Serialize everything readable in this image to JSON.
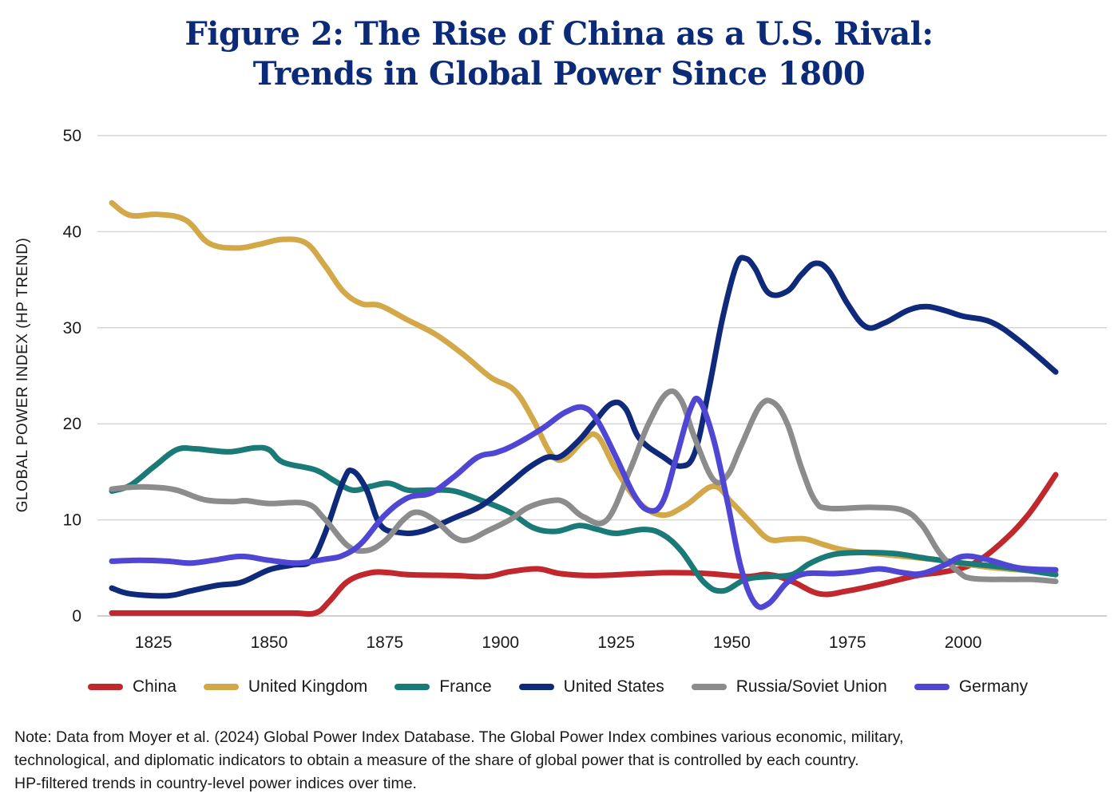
{
  "title": {
    "line1": "Figure 2: The Rise of China as a U.S. Rival:",
    "line2": "Trends in Global Power Since 1800"
  },
  "note": {
    "line1": "Note: Data from Moyer et al. (2024) Global Power Index Database. The Global Power Index combines various economic, military,",
    "line2": "technological, and diplomatic indicators to obtain a measure of the share of global power that is controlled by each country.",
    "line3": "HP-filtered trends in country-level power indices over time."
  },
  "chart_data": {
    "type": "line",
    "ylabel": "GLOBAL POWER INDEX (HP TREND)",
    "xlabel": "",
    "xlim": [
      1815,
      2022
    ],
    "ylim": [
      0,
      50
    ],
    "xticks": [
      1825,
      1850,
      1875,
      1900,
      1925,
      1950,
      1975,
      2000
    ],
    "yticks": [
      0,
      10,
      20,
      30,
      40,
      50
    ],
    "grid": "horizontal",
    "legend_position": "bottom",
    "series": [
      {
        "name": "China",
        "color": "#c0282d",
        "points": [
          [
            1816,
            0.3
          ],
          [
            1830,
            0.3
          ],
          [
            1845,
            0.3
          ],
          [
            1855,
            0.3
          ],
          [
            1860,
            0.3
          ],
          [
            1863,
            1.5
          ],
          [
            1867,
            3.6
          ],
          [
            1872,
            4.5
          ],
          [
            1876,
            4.5
          ],
          [
            1880,
            4.3
          ],
          [
            1890,
            4.2
          ],
          [
            1897,
            4.1
          ],
          [
            1902,
            4.6
          ],
          [
            1908,
            4.9
          ],
          [
            1913,
            4.4
          ],
          [
            1920,
            4.2
          ],
          [
            1930,
            4.4
          ],
          [
            1937,
            4.5
          ],
          [
            1945,
            4.4
          ],
          [
            1953,
            4.1
          ],
          [
            1958,
            4.3
          ],
          [
            1963,
            3.6
          ],
          [
            1969,
            2.3
          ],
          [
            1975,
            2.6
          ],
          [
            1982,
            3.3
          ],
          [
            1990,
            4.2
          ],
          [
            1996,
            4.6
          ],
          [
            2002,
            5.4
          ],
          [
            2008,
            7.5
          ],
          [
            2014,
            10.5
          ],
          [
            2020,
            14.7
          ]
        ]
      },
      {
        "name": "United Kingdom",
        "color": "#d3a849",
        "points": [
          [
            1816,
            43
          ],
          [
            1820,
            41.7
          ],
          [
            1826,
            41.8
          ],
          [
            1832,
            41.2
          ],
          [
            1837,
            38.8
          ],
          [
            1843,
            38.3
          ],
          [
            1848,
            38.7
          ],
          [
            1853,
            39.2
          ],
          [
            1858,
            38.8
          ],
          [
            1862,
            36.5
          ],
          [
            1866,
            33.8
          ],
          [
            1870,
            32.5
          ],
          [
            1874,
            32.3
          ],
          [
            1880,
            30.8
          ],
          [
            1886,
            29.3
          ],
          [
            1892,
            27.2
          ],
          [
            1898,
            24.8
          ],
          [
            1903,
            23.5
          ],
          [
            1907,
            20.5
          ],
          [
            1911,
            16.8
          ],
          [
            1914,
            16.4
          ],
          [
            1918,
            18.3
          ],
          [
            1921,
            18.7
          ],
          [
            1925,
            15.2
          ],
          [
            1930,
            11.8
          ],
          [
            1935,
            10.5
          ],
          [
            1940,
            11.5
          ],
          [
            1946,
            13.5
          ],
          [
            1950,
            11.8
          ],
          [
            1954,
            9.8
          ],
          [
            1958,
            8
          ],
          [
            1962,
            8
          ],
          [
            1966,
            8
          ],
          [
            1970,
            7.4
          ],
          [
            1975,
            6.8
          ],
          [
            1985,
            6.3
          ],
          [
            1995,
            5.8
          ],
          [
            2005,
            5.1
          ],
          [
            2015,
            4.7
          ],
          [
            2020,
            4.6
          ]
        ]
      },
      {
        "name": "France",
        "color": "#1a7a77",
        "points": [
          [
            1816,
            13
          ],
          [
            1820,
            13.6
          ],
          [
            1825,
            15.5
          ],
          [
            1830,
            17.3
          ],
          [
            1834,
            17.4
          ],
          [
            1838,
            17.2
          ],
          [
            1842,
            17.1
          ],
          [
            1847,
            17.5
          ],
          [
            1850,
            17.3
          ],
          [
            1853,
            16
          ],
          [
            1860,
            15.2
          ],
          [
            1864,
            14.1
          ],
          [
            1868,
            13.1
          ],
          [
            1872,
            13.5
          ],
          [
            1876,
            13.8
          ],
          [
            1880,
            13.1
          ],
          [
            1885,
            13.1
          ],
          [
            1890,
            13
          ],
          [
            1896,
            12
          ],
          [
            1902,
            10.8
          ],
          [
            1907,
            9.2
          ],
          [
            1912,
            8.8
          ],
          [
            1917,
            9.4
          ],
          [
            1921,
            9
          ],
          [
            1925,
            8.6
          ],
          [
            1931,
            9
          ],
          [
            1935,
            8.5
          ],
          [
            1939,
            6.8
          ],
          [
            1944,
            3.5
          ],
          [
            1948,
            2.6
          ],
          [
            1953,
            3.8
          ],
          [
            1958,
            4.1
          ],
          [
            1963,
            4.3
          ],
          [
            1967,
            5.5
          ],
          [
            1972,
            6.4
          ],
          [
            1978,
            6.6
          ],
          [
            1985,
            6.5
          ],
          [
            1992,
            6
          ],
          [
            2000,
            5.5
          ],
          [
            2010,
            5
          ],
          [
            2020,
            4.3
          ]
        ]
      },
      {
        "name": "United States",
        "color": "#0f2a7a",
        "points": [
          [
            1816,
            2.9
          ],
          [
            1820,
            2.3
          ],
          [
            1828,
            2.1
          ],
          [
            1833,
            2.6
          ],
          [
            1839,
            3.2
          ],
          [
            1844,
            3.5
          ],
          [
            1850,
            4.8
          ],
          [
            1855,
            5.3
          ],
          [
            1859,
            5.7
          ],
          [
            1862,
            8.5
          ],
          [
            1866,
            14
          ],
          [
            1868,
            15.1
          ],
          [
            1871,
            13.2
          ],
          [
            1874,
            9.5
          ],
          [
            1878,
            8.7
          ],
          [
            1883,
            8.8
          ],
          [
            1890,
            10.2
          ],
          [
            1896,
            11.5
          ],
          [
            1902,
            13.8
          ],
          [
            1906,
            15.4
          ],
          [
            1910,
            16.5
          ],
          [
            1913,
            16.6
          ],
          [
            1917,
            18.3
          ],
          [
            1920,
            20
          ],
          [
            1924,
            22.1
          ],
          [
            1927,
            21.6
          ],
          [
            1930,
            18.5
          ],
          [
            1935,
            16.6
          ],
          [
            1939,
            15.6
          ],
          [
            1942,
            17
          ],
          [
            1945,
            23.5
          ],
          [
            1948,
            31
          ],
          [
            1951,
            36.5
          ],
          [
            1953,
            37.2
          ],
          [
            1955,
            36.2
          ],
          [
            1958,
            33.6
          ],
          [
            1962,
            33.8
          ],
          [
            1965,
            35.5
          ],
          [
            1968,
            36.7
          ],
          [
            1971,
            35.9
          ],
          [
            1975,
            32.5
          ],
          [
            1979,
            30.1
          ],
          [
            1983,
            30.5
          ],
          [
            1988,
            31.8
          ],
          [
            1992,
            32.2
          ],
          [
            1996,
            31.8
          ],
          [
            2000,
            31.2
          ],
          [
            2006,
            30.6
          ],
          [
            2012,
            28.7
          ],
          [
            2020,
            25.4
          ]
        ]
      },
      {
        "name": "Russia/Soviet Union",
        "color": "#8c8c8c",
        "points": [
          [
            1816,
            13.2
          ],
          [
            1820,
            13.4
          ],
          [
            1825,
            13.4
          ],
          [
            1830,
            13.1
          ],
          [
            1836,
            12.1
          ],
          [
            1842,
            11.9
          ],
          [
            1845,
            12
          ],
          [
            1850,
            11.7
          ],
          [
            1858,
            11.7
          ],
          [
            1862,
            10.1
          ],
          [
            1867,
            7.3
          ],
          [
            1871,
            6.8
          ],
          [
            1875,
            7.8
          ],
          [
            1879,
            10
          ],
          [
            1882,
            10.8
          ],
          [
            1886,
            9.9
          ],
          [
            1890,
            8.2
          ],
          [
            1893,
            7.9
          ],
          [
            1897,
            8.8
          ],
          [
            1902,
            10
          ],
          [
            1906,
            11.3
          ],
          [
            1911,
            12
          ],
          [
            1914,
            11.8
          ],
          [
            1918,
            10.3
          ],
          [
            1923,
            10
          ],
          [
            1928,
            15.2
          ],
          [
            1932,
            20
          ],
          [
            1936,
            23.2
          ],
          [
            1939,
            22.5
          ],
          [
            1942,
            18.5
          ],
          [
            1946,
            14.2
          ],
          [
            1949,
            14.6
          ],
          [
            1952,
            17.7
          ],
          [
            1956,
            21.8
          ],
          [
            1959,
            22.2
          ],
          [
            1962,
            20
          ],
          [
            1965,
            15.5
          ],
          [
            1968,
            12
          ],
          [
            1971,
            11.2
          ],
          [
            1980,
            11.3
          ],
          [
            1987,
            11
          ],
          [
            1991,
            9.5
          ],
          [
            1995,
            6.5
          ],
          [
            1999,
            4.6
          ],
          [
            2002,
            3.9
          ],
          [
            2010,
            3.8
          ],
          [
            2015,
            3.8
          ],
          [
            2020,
            3.6
          ]
        ]
      },
      {
        "name": "Germany",
        "color": "#5046d4",
        "points": [
          [
            1816,
            5.7
          ],
          [
            1822,
            5.8
          ],
          [
            1828,
            5.7
          ],
          [
            1833,
            5.5
          ],
          [
            1838,
            5.8
          ],
          [
            1844,
            6.2
          ],
          [
            1850,
            5.8
          ],
          [
            1856,
            5.5
          ],
          [
            1862,
            5.9
          ],
          [
            1866,
            6.3
          ],
          [
            1870,
            7.6
          ],
          [
            1875,
            10.5
          ],
          [
            1880,
            12.3
          ],
          [
            1885,
            12.8
          ],
          [
            1890,
            14.5
          ],
          [
            1895,
            16.5
          ],
          [
            1899,
            17
          ],
          [
            1903,
            17.8
          ],
          [
            1909,
            19.5
          ],
          [
            1914,
            21.2
          ],
          [
            1918,
            21.7
          ],
          [
            1921,
            20.3
          ],
          [
            1925,
            16.5
          ],
          [
            1929,
            12.5
          ],
          [
            1932,
            11
          ],
          [
            1935,
            11.8
          ],
          [
            1938,
            16.5
          ],
          [
            1941,
            21.5
          ],
          [
            1943,
            22.4
          ],
          [
            1946,
            18.5
          ],
          [
            1949,
            12
          ],
          [
            1952,
            5
          ],
          [
            1955,
            1.3
          ],
          [
            1958,
            1.3
          ],
          [
            1962,
            3.5
          ],
          [
            1966,
            4.4
          ],
          [
            1972,
            4.4
          ],
          [
            1977,
            4.6
          ],
          [
            1982,
            4.9
          ],
          [
            1987,
            4.5
          ],
          [
            1991,
            4.4
          ],
          [
            1996,
            5.3
          ],
          [
            2000,
            6.2
          ],
          [
            2005,
            5.9
          ],
          [
            2012,
            5
          ],
          [
            2020,
            4.8
          ]
        ]
      }
    ]
  }
}
